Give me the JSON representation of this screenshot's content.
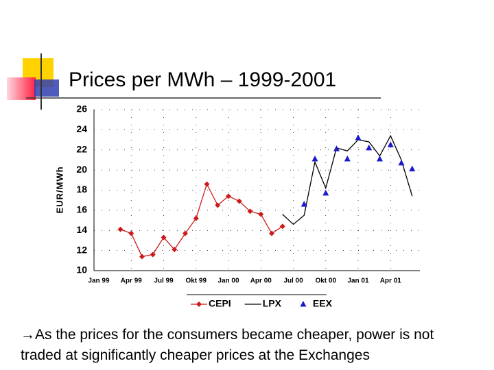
{
  "chart_data": {
    "type": "line",
    "title": "Prices per MWh – 1999-2001",
    "y_label": "EUR/MWh",
    "note": "→As the prices for the consumers became cheaper, power is not traded at significantly cheaper prices at the Exchanges",
    "categories": [
      "Jan 99",
      null,
      null,
      "Apr 99",
      null,
      null,
      "Jul 99",
      null,
      null,
      "Okt 99",
      null,
      null,
      "Jan 00",
      null,
      null,
      "Apr 00",
      null,
      null,
      "Jul 00",
      null,
      null,
      "Okt 00",
      null,
      null,
      "Jan 01",
      null,
      null,
      "Apr 01",
      null,
      null
    ],
    "series": [
      {
        "name": "CEPI",
        "color": "#cc1a1a",
        "line": true,
        "marker": "diamond",
        "values": [
          null,
          null,
          14.1,
          13.7,
          11.4,
          11.6,
          13.3,
          12.1,
          13.7,
          15.2,
          18.6,
          16.5,
          17.4,
          16.9,
          15.9,
          15.6,
          13.7,
          14.4,
          null,
          null,
          null,
          null,
          null,
          null,
          null,
          null,
          null,
          null,
          null,
          null
        ]
      },
      {
        "name": "LPX",
        "color": "#000000",
        "line": true,
        "marker": "none",
        "values": [
          null,
          null,
          null,
          null,
          null,
          null,
          null,
          null,
          null,
          null,
          null,
          null,
          null,
          null,
          null,
          null,
          null,
          15.6,
          14.6,
          15.5,
          20.8,
          18.2,
          22.2,
          21.9,
          23.0,
          22.8,
          21.4,
          23.4,
          21.0,
          17.4
        ]
      },
      {
        "name": "EEX",
        "color": "#1a1acc",
        "line": false,
        "marker": "triangle",
        "values": [
          null,
          null,
          null,
          null,
          null,
          null,
          null,
          null,
          null,
          null,
          null,
          null,
          null,
          null,
          null,
          null,
          null,
          null,
          null,
          16.6,
          21.1,
          17.7,
          22.1,
          21.1,
          23.2,
          22.2,
          21.1,
          22.5,
          20.7,
          20.1
        ]
      }
    ],
    "ylim": [
      10,
      26
    ],
    "yticks": [
      10,
      12,
      14,
      16,
      18,
      20,
      22,
      24,
      26
    ],
    "grid": true,
    "legend": "bottom"
  }
}
